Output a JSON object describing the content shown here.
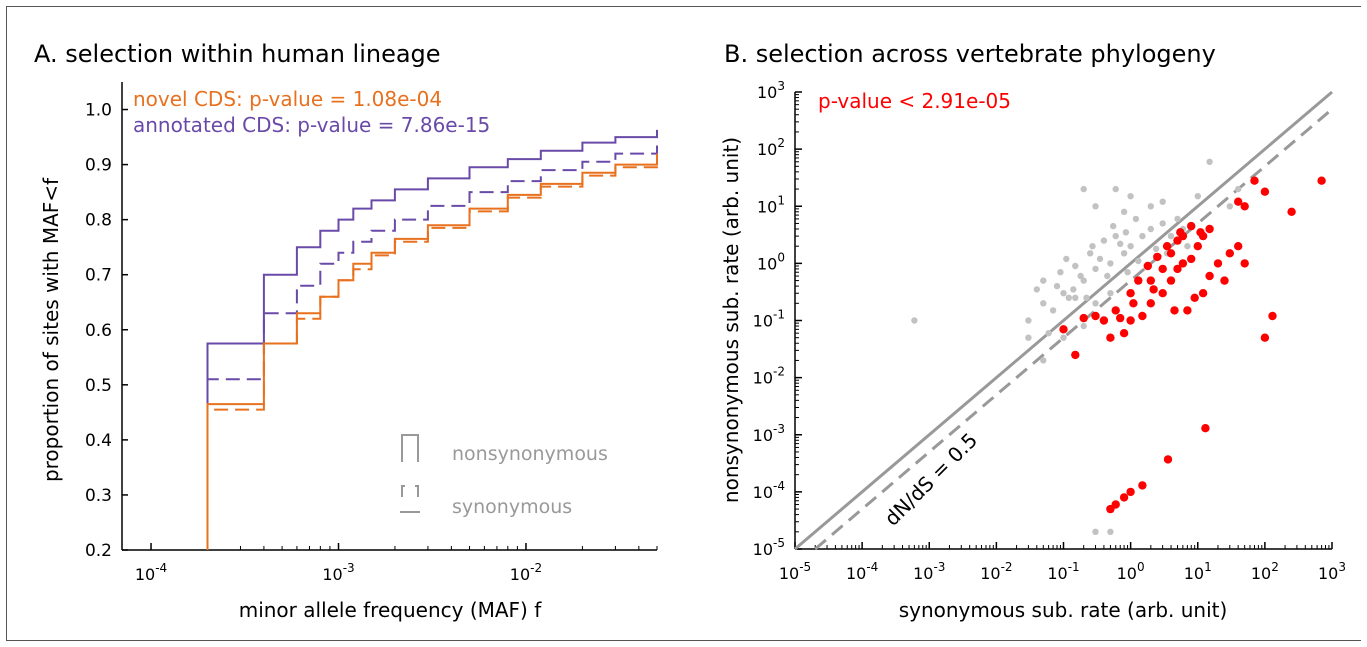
{
  "colors": {
    "purple": "#6a4aa8",
    "orange": "#e8711f",
    "gray": "#999999",
    "light_gray": "#c2c2c2",
    "red": "#ff0000",
    "axis": "#000000"
  },
  "chart_data": [
    {
      "type": "line",
      "title": "A. selection within human lineage",
      "xlabel": "minor allele frequency (MAF) f",
      "ylabel": "proportion of sites with MAF<f",
      "xscale": "log",
      "xlim": [
        7e-05,
        0.05
      ],
      "ylim": [
        0.2,
        1.05
      ],
      "x_tick_labels": [
        {
          "value": 0.0001,
          "base": "10",
          "exp": "-4"
        },
        {
          "value": 0.001,
          "base": "10",
          "exp": "-3"
        },
        {
          "value": 0.01,
          "base": "10",
          "exp": "-2"
        }
      ],
      "y_ticks": [
        0.2,
        0.3,
        0.4,
        0.5,
        0.6,
        0.7,
        0.8,
        0.9,
        1.0
      ],
      "y_tick_labels": [
        "0.2",
        "0.3",
        "0.4",
        "0.5",
        "0.6",
        "0.7",
        "0.8",
        "0.9",
        "1.0"
      ],
      "annotations": [
        {
          "text": "novel CDS: p-value = 1.08e-04",
          "color": "orange"
        },
        {
          "text": "annotated CDS: p-value = 7.86e-15",
          "color": "purple"
        }
      ],
      "legend": {
        "placement": "lower-right",
        "entries": [
          {
            "label": "nonsynonymous",
            "style": "solid"
          },
          {
            "label": "synonymous",
            "style": "dashed"
          }
        ]
      },
      "series": [
        {
          "group": "annotated",
          "kind": "nonsynonymous",
          "color": "purple",
          "dashed": false,
          "x": [
            0.0002,
            0.0004,
            0.0006,
            0.0008,
            0.001,
            0.0012,
            0.0015,
            0.002,
            0.003,
            0.005,
            0.008,
            0.012,
            0.02,
            0.03,
            0.05
          ],
          "y": [
            0.575,
            0.7,
            0.75,
            0.78,
            0.8,
            0.82,
            0.835,
            0.855,
            0.875,
            0.895,
            0.91,
            0.925,
            0.94,
            0.95,
            0.963
          ]
        },
        {
          "group": "annotated",
          "kind": "synonymous",
          "color": "purple",
          "dashed": true,
          "x": [
            0.0002,
            0.0004,
            0.0006,
            0.0008,
            0.001,
            0.0012,
            0.0015,
            0.002,
            0.003,
            0.005,
            0.008,
            0.012,
            0.02,
            0.03,
            0.05
          ],
          "y": [
            0.51,
            0.63,
            0.68,
            0.72,
            0.74,
            0.76,
            0.78,
            0.8,
            0.825,
            0.85,
            0.87,
            0.89,
            0.905,
            0.92,
            0.94
          ]
        },
        {
          "group": "novel",
          "kind": "nonsynonymous",
          "color": "orange",
          "dashed": false,
          "x": [
            0.0002,
            0.0004,
            0.0006,
            0.0008,
            0.001,
            0.0012,
            0.0015,
            0.002,
            0.003,
            0.005,
            0.008,
            0.012,
            0.02,
            0.03,
            0.05
          ],
          "y": [
            0.465,
            0.575,
            0.63,
            0.66,
            0.69,
            0.72,
            0.74,
            0.765,
            0.79,
            0.82,
            0.845,
            0.865,
            0.885,
            0.9,
            0.92
          ]
        },
        {
          "group": "novel",
          "kind": "synonymous",
          "color": "orange",
          "dashed": true,
          "x": [
            0.0002,
            0.0004,
            0.0006,
            0.0008,
            0.001,
            0.0012,
            0.0015,
            0.002,
            0.003,
            0.005,
            0.008,
            0.012,
            0.02,
            0.03,
            0.05
          ],
          "y": [
            0.455,
            0.575,
            0.62,
            0.66,
            0.69,
            0.71,
            0.735,
            0.76,
            0.785,
            0.815,
            0.84,
            0.86,
            0.88,
            0.895,
            0.918
          ]
        }
      ]
    },
    {
      "type": "scatter",
      "title": "B. selection across vertebrate phylogeny",
      "xlabel": "synonymous sub. rate (arb. unit)",
      "ylabel": "nonsynonymous sub. rate (arb. unit)",
      "xscale": "log",
      "yscale": "log",
      "xlim": [
        1e-05,
        1000
      ],
      "ylim": [
        1e-05,
        1000
      ],
      "x_tick_labels": [
        {
          "value": 1e-05,
          "base": "10",
          "exp": "-5"
        },
        {
          "value": 0.0001,
          "base": "10",
          "exp": "-4"
        },
        {
          "value": 0.001,
          "base": "10",
          "exp": "-3"
        },
        {
          "value": 0.01,
          "base": "10",
          "exp": "-2"
        },
        {
          "value": 0.1,
          "base": "10",
          "exp": "-1"
        },
        {
          "value": 1,
          "base": "10",
          "exp": "0"
        },
        {
          "value": 10,
          "base": "10",
          "exp": "1"
        },
        {
          "value": 100,
          "base": "10",
          "exp": "2"
        },
        {
          "value": 1000,
          "base": "10",
          "exp": "3"
        }
      ],
      "y_tick_labels": [
        {
          "value": 1e-05,
          "base": "10",
          "exp": "-5"
        },
        {
          "value": 0.0001,
          "base": "10",
          "exp": "-4"
        },
        {
          "value": 0.001,
          "base": "10",
          "exp": "-3"
        },
        {
          "value": 0.01,
          "base": "10",
          "exp": "-2"
        },
        {
          "value": 0.1,
          "base": "10",
          "exp": "-1"
        },
        {
          "value": 1,
          "base": "10",
          "exp": "0"
        },
        {
          "value": 10,
          "base": "10",
          "exp": "1"
        },
        {
          "value": 100,
          "base": "10",
          "exp": "2"
        },
        {
          "value": 1000,
          "base": "10",
          "exp": "3"
        }
      ],
      "annotations": [
        {
          "text": "p-value < 2.91e-05",
          "color": "red"
        },
        {
          "text": "dN/dS = 0.5",
          "color": "axis"
        }
      ],
      "reference_lines": [
        {
          "slope_ratio": 1,
          "dashed": false,
          "color": "gray"
        },
        {
          "slope_ratio": 0.5,
          "dashed": true,
          "color": "gray"
        }
      ],
      "series": [
        {
          "name": "",
          "color": "light_gray",
          "points": [
            [
              0.0006,
              0.1
            ],
            [
              0.05,
              0.02
            ],
            [
              0.1,
              0.05
            ],
            [
              0.2,
              0.08
            ],
            [
              0.3,
              0.2
            ],
            [
              0.5,
              0.3
            ],
            [
              0.1,
              0.3
            ],
            [
              0.2,
              0.5
            ],
            [
              0.3,
              0.8
            ],
            [
              0.5,
              1.0
            ],
            [
              0.8,
              1.5
            ],
            [
              1.0,
              2.0
            ],
            [
              0.05,
              0.2
            ],
            [
              0.08,
              0.4
            ],
            [
              0.15,
              0.9
            ],
            [
              0.25,
              1.5
            ],
            [
              0.4,
              2.5
            ],
            [
              0.6,
              3.0
            ],
            [
              0.03,
              0.1
            ],
            [
              0.07,
              0.15
            ],
            [
              0.12,
              0.25
            ],
            [
              0.18,
              0.6
            ],
            [
              0.35,
              1.2
            ],
            [
              0.7,
              2.2
            ],
            [
              1.5,
              3.0
            ],
            [
              2.0,
              4.0
            ],
            [
              3.0,
              5.0
            ],
            [
              4.0,
              3.0
            ],
            [
              5.0,
              6.0
            ],
            [
              6.0,
              4.0
            ],
            [
              0.2,
              20
            ],
            [
              0.6,
              20
            ],
            [
              1.0,
              15
            ],
            [
              2.0,
              10
            ],
            [
              3.0,
              12
            ],
            [
              10,
              15
            ],
            [
              15,
              60
            ],
            [
              30,
              10
            ],
            [
              40,
              20
            ],
            [
              0.3,
              10
            ],
            [
              0.8,
              8
            ],
            [
              1.2,
              6
            ],
            [
              0.05,
              0.5
            ],
            [
              0.09,
              0.7
            ],
            [
              0.14,
              0.35
            ],
            [
              0.22,
              0.25
            ],
            [
              0.45,
              0.6
            ],
            [
              0.9,
              0.7
            ],
            [
              0.03,
              0.05
            ],
            [
              0.06,
              0.06
            ],
            [
              0.5,
              2e-05
            ],
            [
              0.3,
              2e-05
            ],
            [
              0.15,
              0.25
            ],
            [
              0.04,
              0.35
            ],
            [
              0.11,
              1.2
            ],
            [
              0.27,
              2.0
            ],
            [
              0.55,
              4.5
            ],
            [
              0.85,
              3.5
            ],
            [
              1.3,
              1.1
            ],
            [
              2.4,
              1.8
            ],
            [
              3.5,
              1.5
            ],
            [
              7.0,
              2.0
            ]
          ]
        },
        {
          "name": "",
          "color": "red",
          "points": [
            [
              0.15,
              0.025
            ],
            [
              0.1,
              0.07
            ],
            [
              0.2,
              0.11
            ],
            [
              0.3,
              0.12
            ],
            [
              0.5,
              0.05
            ],
            [
              0.8,
              0.06
            ],
            [
              0.4,
              0.1
            ],
            [
              0.6,
              0.15
            ],
            [
              1.0,
              0.1
            ],
            [
              1.5,
              0.12
            ],
            [
              2.0,
              0.2
            ],
            [
              3.0,
              0.3
            ],
            [
              4.0,
              0.5
            ],
            [
              5.0,
              0.8
            ],
            [
              6.0,
              1.0
            ],
            [
              8.0,
              1.2
            ],
            [
              10,
              2.0
            ],
            [
              12,
              3.0
            ],
            [
              15,
              4.0
            ],
            [
              2.0,
              0.5
            ],
            [
              3.0,
              0.8
            ],
            [
              4.0,
              1.5
            ],
            [
              5.0,
              2.5
            ],
            [
              6.0,
              3.0
            ],
            [
              7.0,
              0.15
            ],
            [
              9.0,
              0.25
            ],
            [
              12,
              0.3
            ],
            [
              15,
              0.6
            ],
            [
              20,
              1.0
            ],
            [
              25,
              0.5
            ],
            [
              30,
              1.5
            ],
            [
              40,
              2.0
            ],
            [
              50,
              1.0
            ],
            [
              40,
              12
            ],
            [
              50,
              10
            ],
            [
              100,
              18
            ],
            [
              70,
              28
            ],
            [
              250,
              8
            ],
            [
              700,
              28
            ],
            [
              130,
              0.12
            ],
            [
              100,
              0.05
            ],
            [
              13,
              0.0013
            ],
            [
              3.6,
              0.00037
            ],
            [
              1.5,
              0.00013
            ],
            [
              1.0,
              0.0001
            ],
            [
              0.8,
              8e-05
            ],
            [
              0.6,
              6e-05
            ],
            [
              0.5,
              5e-05
            ],
            [
              1.0,
              0.3
            ],
            [
              1.3,
              0.5
            ],
            [
              1.8,
              0.9
            ],
            [
              2.5,
              1.3
            ],
            [
              3.5,
              2.0
            ],
            [
              5.5,
              3.5
            ],
            [
              8.0,
              4.5
            ],
            [
              11,
              3.5
            ],
            [
              2.2,
              0.35
            ],
            [
              1.1,
              0.2
            ],
            [
              0.7,
              0.11
            ],
            [
              4.5,
              0.15
            ]
          ]
        }
      ]
    }
  ]
}
